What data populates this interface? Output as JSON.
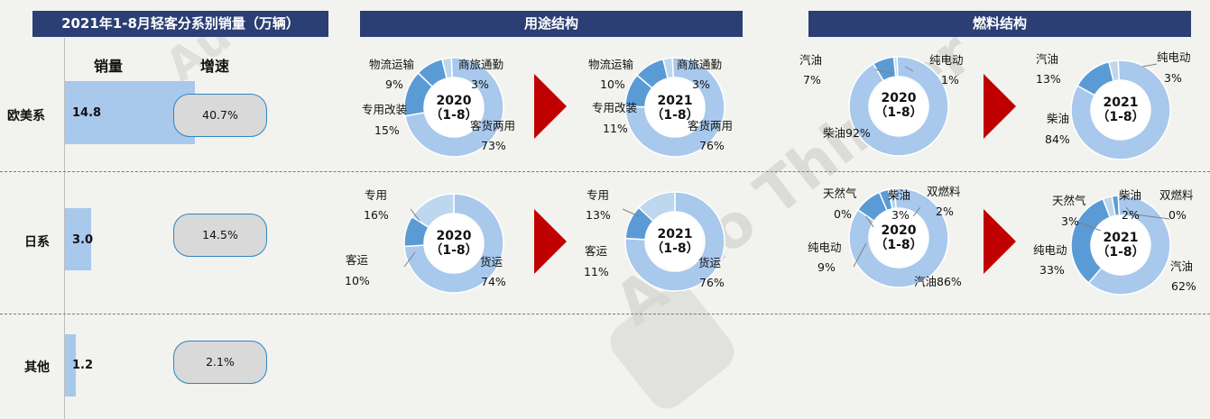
{
  "headers": {
    "left": "2021年1-8月轻客分系别销量（万辆）",
    "mid": "用途结构",
    "right": "燃料结构"
  },
  "columns": {
    "sales": "销量",
    "growth": "增速"
  },
  "bars": [
    {
      "category": "欧美系",
      "value": 14.8,
      "value_label": "14.8",
      "growth": "40.7%"
    },
    {
      "category": "日系",
      "value": 3.0,
      "value_label": "3.0",
      "growth": "14.5%"
    },
    {
      "category": "其他",
      "value": 1.2,
      "value_label": "1.2",
      "growth": "2.1%"
    }
  ],
  "donuts": {
    "use_eu_2020": {
      "center": [
        "2020",
        "（1-8）"
      ]
    },
    "use_eu_2021": {
      "center": [
        "2021",
        "（1-8）"
      ]
    },
    "use_jp_2020": {
      "center": [
        "2020",
        "（1-8）"
      ]
    },
    "use_jp_2021": {
      "center": [
        "2021",
        "（1-8）"
      ]
    },
    "fuel_eu_2020": {
      "center": [
        "2020",
        "（1-8）"
      ]
    },
    "fuel_eu_2021": {
      "center": [
        "2021",
        "（1-8）"
      ]
    },
    "fuel_jp_2020": {
      "center": [
        "2020",
        "（1-8）"
      ]
    },
    "fuel_jp_2021": {
      "center": [
        "2021",
        "（1-8）"
      ]
    }
  },
  "labels": {
    "use_eu_2020": {
      "a": "物流运输",
      "a_v": "9%",
      "b": "商旅通勤",
      "b_v": "3%",
      "c": "专用改装",
      "c_v": "15%",
      "d": "客货两用",
      "d_v": "73%"
    },
    "use_eu_2021": {
      "a": "物流运输",
      "a_v": "10%",
      "b": "商旅通勤",
      "b_v": "3%",
      "c": "专用改装",
      "c_v": "11%",
      "d": "客货两用",
      "d_v": "76%"
    },
    "use_jp_2020": {
      "a": "专用",
      "a_v": "16%",
      "b": "客运",
      "b_v": "10%",
      "c": "货运",
      "c_v": "74%"
    },
    "use_jp_2021": {
      "a": "专用",
      "a_v": "13%",
      "b": "客运",
      "b_v": "11%",
      "c": "货运",
      "c_v": "76%"
    },
    "fuel_eu_2020": {
      "a": "汽油",
      "a_v": "7%",
      "b": "纯电动",
      "b_v": "1%",
      "c": "柴油92%"
    },
    "fuel_eu_2021": {
      "a": "汽油",
      "a_v": "13%",
      "b": "纯电动",
      "b_v": "3%",
      "c": "柴油",
      "c_v": "84%"
    },
    "fuel_jp_2020": {
      "a": "天然气",
      "a_v": "0%",
      "b": "柴油",
      "b_v": "3%",
      "c": "双燃料",
      "c_v": "2%",
      "d": "纯电动",
      "d_v": "9%",
      "e": "汽油86%"
    },
    "fuel_jp_2021": {
      "a": "天然气",
      "a_v": "3%",
      "b": "柴油",
      "b_v": "2%",
      "c": "双燃料",
      "c_v": "0%",
      "d": "纯电动",
      "d_v": "33%",
      "e": "汽油",
      "e_v": "62%"
    }
  },
  "chart_data": [
    {
      "type": "bar",
      "title": "2021年1-8月轻客分系别销量（万辆）",
      "categories": [
        "欧美系",
        "日系",
        "其他"
      ],
      "series": [
        {
          "name": "销量",
          "values": [
            14.8,
            3.0,
            1.2
          ]
        }
      ],
      "growth": [
        "40.7%",
        "14.5%",
        "2.1%"
      ]
    },
    {
      "type": "pie",
      "title": "用途结构",
      "categories": [
        "客货两用",
        "专用改装",
        "物流运输",
        "商旅通勤"
      ],
      "series": [
        {
          "name": "2020",
          "values": [
            73,
            15,
            9,
            3
          ]
        },
        {
          "name": "2021",
          "values": [
            76,
            11,
            10,
            3
          ]
        }
      ]
    },
    {
      "type": "pie",
      "title": "用途结构",
      "categories": [
        "货运",
        "客运",
        "专用"
      ],
      "series": [
        {
          "name": "2020",
          "values": [
            74,
            10,
            16
          ]
        },
        {
          "name": "2021",
          "values": [
            76,
            11,
            13
          ]
        }
      ]
    },
    {
      "type": "pie",
      "title": "燃料结构",
      "categories": [
        "柴油",
        "汽油",
        "纯电动"
      ],
      "series": [
        {
          "name": "2020",
          "values": [
            92,
            7,
            1
          ]
        },
        {
          "name": "2021",
          "values": [
            84,
            13,
            3
          ]
        }
      ]
    },
    {
      "type": "pie",
      "title": "燃料结构",
      "categories": [
        "汽油",
        "纯电动",
        "天然气",
        "柴油",
        "双燃料"
      ],
      "series": [
        {
          "name": "2020",
          "values": [
            86,
            9,
            0,
            3,
            2
          ]
        },
        {
          "name": "2021",
          "values": [
            62,
            33,
            3,
            2,
            0
          ]
        }
      ]
    }
  ],
  "colors": {
    "header": "#2b3f75",
    "bar": "#a8c8ec",
    "arrow": "#c00000",
    "donut_main": "#a8c8ec",
    "donut_mid": "#5b9bd5",
    "donut_light": "#bdd7ee",
    "pill_border": "#2e86c1"
  },
  "watermark": "AutoThinker 汽车智库"
}
